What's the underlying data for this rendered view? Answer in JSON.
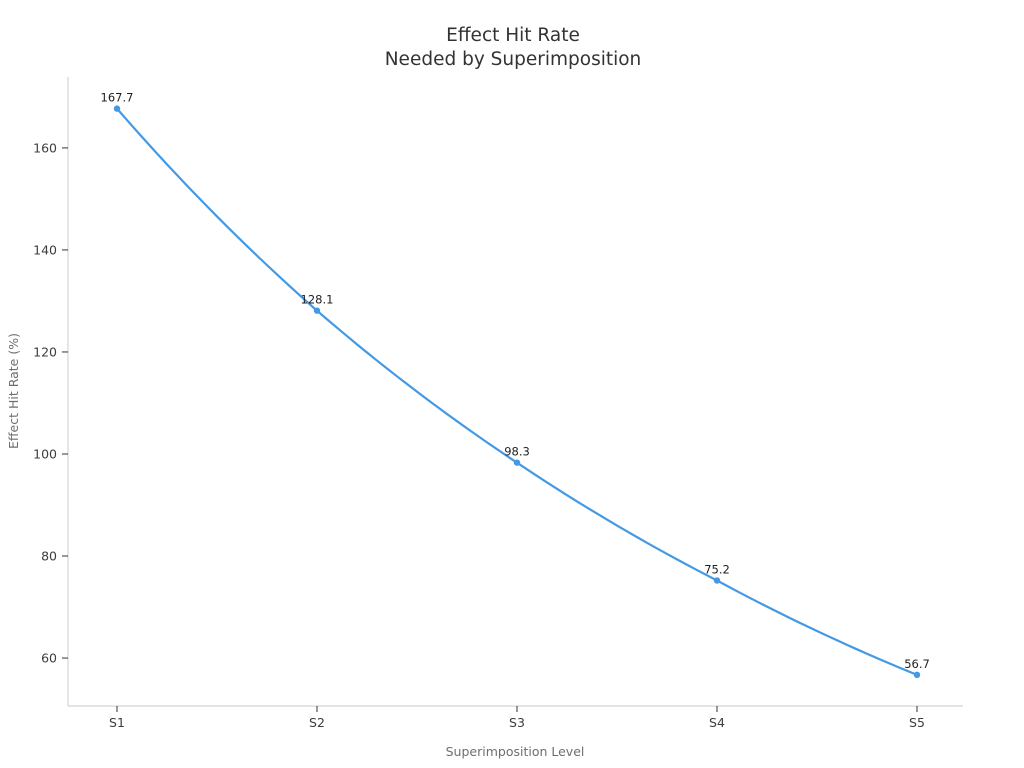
{
  "chart_data": {
    "type": "line",
    "title_lines": [
      "Effect Hit Rate",
      "Needed by Superimposition"
    ],
    "title": "Effect Hit Rate\nNeeded by Superimposition",
    "xlabel": "Superimposition Level",
    "ylabel": "Effect Hit Rate (%)",
    "categories": [
      "S1",
      "S2",
      "S3",
      "S4",
      "S5"
    ],
    "values": [
      167.7,
      128.1,
      98.3,
      75.2,
      56.7
    ],
    "data_labels": [
      "167.7",
      "128.1",
      "98.3",
      "75.2",
      "56.7"
    ],
    "yticks": [
      60,
      80,
      100,
      120,
      140,
      160
    ],
    "ylim": [
      50.6,
      173.9
    ],
    "grid": false,
    "legend_position": "none",
    "marker": "circle",
    "curve": "smooth-decay",
    "colors": {
      "line": "#4499e5",
      "marker": "#4499e5",
      "title": "#333333",
      "tick_label": "#3d3d3d",
      "axis_label": "#6e6e6e",
      "spine": "#d4d4d4",
      "tick_mark": "#333333",
      "data_label": "#1f1f1f",
      "background": "#ffffff"
    }
  }
}
